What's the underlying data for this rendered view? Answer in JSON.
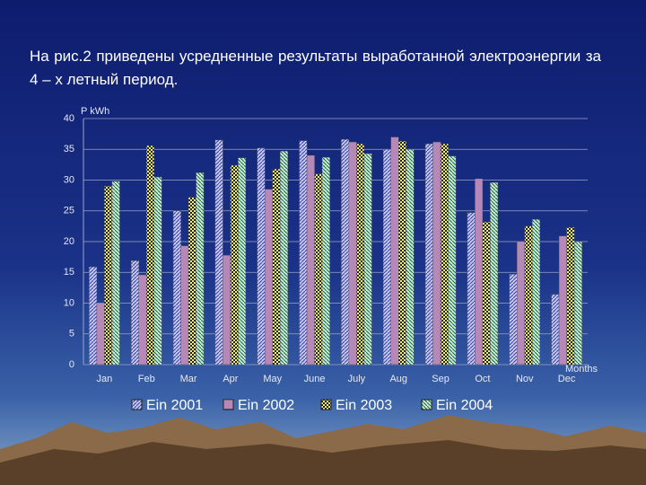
{
  "chart_data": {
    "type": "bar",
    "title": "На рис.2 приведены усредненные результаты выработанной электроэнергии за 4 – х летный период.",
    "y_label": "P kWh",
    "x_label": "Months",
    "categories": [
      "Jan",
      "Feb",
      "Mar",
      "Apr",
      "May",
      "June",
      "July",
      "Aug",
      "Sep",
      "Oct",
      "Nov",
      "Dec"
    ],
    "series": [
      {
        "name": "Ein 2001",
        "color": "#c8c8f0",
        "values": [
          15.9,
          16.9,
          25,
          36.5,
          35.2,
          36.4,
          36.6,
          35,
          35.9,
          24.7,
          14.7,
          11.4
        ]
      },
      {
        "name": "Ein 2002",
        "color": "#e8b4d8",
        "values": [
          10,
          14.6,
          19.3,
          17.8,
          28.5,
          34,
          36.2,
          37,
          36.2,
          30.2,
          20,
          20.9
        ]
      },
      {
        "name": "Ein 2003",
        "color": "#f0f080",
        "values": [
          29,
          35.6,
          27.2,
          32.4,
          31.8,
          31,
          35.9,
          36.3,
          35.9,
          23.2,
          22.5,
          22.3
        ]
      },
      {
        "name": "Ein 2004",
        "color": "#c8f0d8",
        "values": [
          29.8,
          30.5,
          31.2,
          33.6,
          34.7,
          33.7,
          34.3,
          35,
          33.9,
          29.6,
          23.6,
          20
        ]
      }
    ],
    "ylim": [
      0,
      40
    ],
    "yticks": [
      0,
      5,
      10,
      15,
      20,
      25,
      30,
      35,
      40
    ],
    "grid": true
  }
}
